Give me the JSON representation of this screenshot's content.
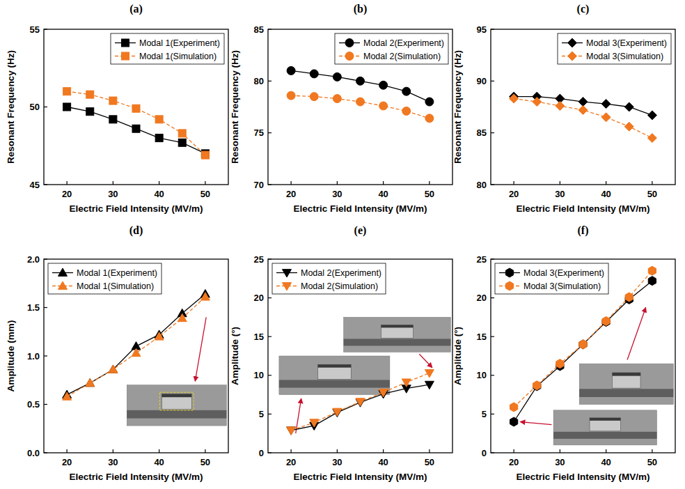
{
  "chart_data": [
    {
      "type": "line",
      "title": "(a)",
      "x_label": "Electric Field Intensity (MV/m)",
      "y_label": "Resonant Frequency (Hz)",
      "x": [
        20,
        25,
        30,
        35,
        40,
        45,
        50
      ],
      "xlim": [
        15,
        55
      ],
      "xticks": [
        20,
        30,
        40,
        50
      ],
      "ylim": [
        45,
        55
      ],
      "yticks": [
        45,
        50,
        55
      ],
      "legend": "upper right",
      "series": [
        {
          "name": "Modal 1(Experiment)",
          "color": "#000000",
          "marker": "square",
          "line_style": "solid",
          "values": [
            50.0,
            49.7,
            49.2,
            48.6,
            48.0,
            47.7,
            47.0
          ]
        },
        {
          "name": "Modal 1(Simulation)",
          "color": "#f07820",
          "marker": "square",
          "line_style": "dashed",
          "values": [
            51.0,
            50.8,
            50.4,
            49.9,
            49.2,
            48.3,
            46.9
          ]
        }
      ]
    },
    {
      "type": "line",
      "title": "(b)",
      "x_label": "Electric Field Intensity (MV/m)",
      "y_label": "Resonant Frequency (Hz)",
      "x": [
        20,
        25,
        30,
        35,
        40,
        45,
        50
      ],
      "xlim": [
        15,
        55
      ],
      "xticks": [
        20,
        30,
        40,
        50
      ],
      "ylim": [
        70,
        85
      ],
      "yticks": [
        70,
        75,
        80,
        85
      ],
      "legend": "upper right",
      "series": [
        {
          "name": "Modal 2(Experiment)",
          "color": "#000000",
          "marker": "circle",
          "line_style": "solid",
          "values": [
            81.0,
            80.7,
            80.4,
            80.0,
            79.6,
            79.0,
            78.0
          ]
        },
        {
          "name": "Modal 2(Simulation)",
          "color": "#f07820",
          "marker": "circle",
          "line_style": "dashed",
          "values": [
            78.6,
            78.5,
            78.3,
            78.0,
            77.6,
            77.1,
            76.4
          ]
        }
      ]
    },
    {
      "type": "line",
      "title": "(c)",
      "x_label": "Electric Field Intensity (MV/m)",
      "y_label": "Resonant Frequency (Hz)",
      "x": [
        20,
        25,
        30,
        35,
        40,
        45,
        50
      ],
      "xlim": [
        15,
        55
      ],
      "xticks": [
        20,
        30,
        40,
        50
      ],
      "ylim": [
        80,
        95
      ],
      "yticks": [
        80,
        85,
        90,
        95
      ],
      "legend": "upper right",
      "series": [
        {
          "name": "Modal 3(Experiment)",
          "color": "#000000",
          "marker": "diamond",
          "line_style": "solid",
          "values": [
            88.5,
            88.5,
            88.3,
            88.0,
            87.8,
            87.5,
            86.7
          ]
        },
        {
          "name": "Modal 3(Simulation)",
          "color": "#f07820",
          "marker": "diamond",
          "line_style": "dashed",
          "values": [
            88.3,
            88.0,
            87.6,
            87.2,
            86.5,
            85.6,
            84.5
          ]
        }
      ]
    },
    {
      "type": "line",
      "title": "(d)",
      "x_label": "Electric Field Intensity (MV/m)",
      "y_label": "Amplitude (mm)",
      "x": [
        20,
        25,
        30,
        35,
        40,
        45,
        50
      ],
      "xlim": [
        15,
        55
      ],
      "xticks": [
        20,
        30,
        40,
        50
      ],
      "ylim": [
        0,
        2
      ],
      "yticks": [
        {
          "value": 0,
          "label": "0.0"
        },
        0.5,
        {
          "value": 1,
          "label": "1.0"
        },
        1.5,
        {
          "value": 2,
          "label": "2.0"
        }
      ],
      "legend": "upper left",
      "series": [
        {
          "name": "Modal 1(Experiment)",
          "color": "#000000",
          "marker": "triangle",
          "line_style": "solid",
          "values": [
            0.6,
            0.72,
            0.86,
            1.1,
            1.22,
            1.44,
            1.64
          ]
        },
        {
          "name": "Modal 1(Simulation)",
          "color": "#f07820",
          "marker": "triangle",
          "line_style": "dashed",
          "values": [
            0.58,
            0.72,
            0.86,
            1.03,
            1.2,
            1.39,
            1.61
          ]
        }
      ]
    },
    {
      "type": "line",
      "title": "(e)",
      "x_label": "Electric Field Intensity (MV/m)",
      "y_label": "Amplitude (°)",
      "x": [
        20,
        25,
        30,
        35,
        40,
        45,
        50
      ],
      "xlim": [
        15,
        55
      ],
      "xticks": [
        20,
        30,
        40,
        50
      ],
      "ylim": [
        0,
        25
      ],
      "yticks": [
        0,
        5,
        10,
        15,
        20,
        25
      ],
      "legend": "upper left",
      "series": [
        {
          "name": "Modal 2(Experiment)",
          "color": "#000000",
          "marker": "triangle-down",
          "line_style": "solid",
          "values": [
            2.9,
            3.5,
            5.2,
            6.5,
            7.6,
            8.3,
            8.8
          ]
        },
        {
          "name": "Modal 2(Simulation)",
          "color": "#f07820",
          "marker": "triangle-down",
          "line_style": "dashed",
          "values": [
            2.9,
            3.9,
            5.3,
            6.6,
            7.8,
            9.1,
            10.3
          ]
        }
      ]
    },
    {
      "type": "line",
      "title": "(f)",
      "x_label": "Electric Field Intensity (MV/m)",
      "y_label": "Amplitude (°)",
      "x": [
        20,
        25,
        30,
        35,
        40,
        45,
        50
      ],
      "xlim": [
        15,
        55
      ],
      "xticks": [
        20,
        30,
        40,
        50
      ],
      "ylim": [
        0,
        25
      ],
      "yticks": [
        0,
        5,
        10,
        15,
        20,
        25
      ],
      "legend": "upper left",
      "series": [
        {
          "name": "Modal 3(Experiment)",
          "color": "#000000",
          "marker": "hexagon",
          "line_style": "solid",
          "values": [
            4.0,
            8.6,
            11.2,
            14.0,
            16.9,
            19.8,
            22.2
          ]
        },
        {
          "name": "Modal 3(Simulation)",
          "color": "#f07820",
          "marker": "hexagon",
          "line_style": "dashed",
          "values": [
            5.9,
            8.7,
            11.5,
            14.0,
            17.0,
            20.1,
            23.5
          ]
        }
      ]
    }
  ]
}
